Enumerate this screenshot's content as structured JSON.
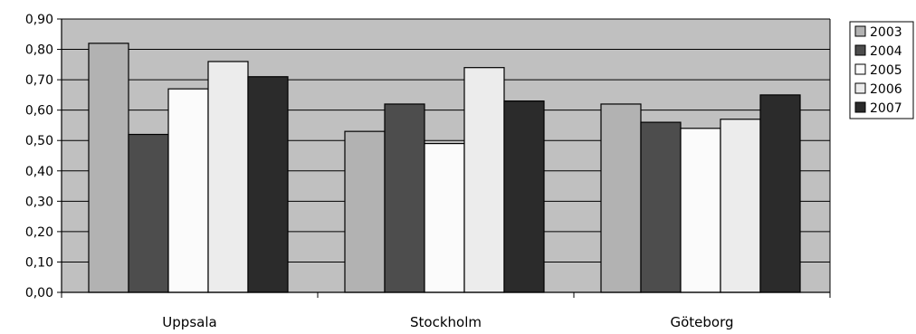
{
  "chart_data": {
    "type": "bar",
    "title": "",
    "xlabel": "",
    "ylabel": "",
    "categories": [
      "Uppsala",
      "Stockholm",
      "Göteborg"
    ],
    "ylim": [
      0,
      0.9
    ],
    "yticks": [
      "0,00",
      "0,10",
      "0,20",
      "0,30",
      "0,40",
      "0,50",
      "0,60",
      "0,70",
      "0,80",
      "0,90"
    ],
    "grid": true,
    "legend_position": "right",
    "plot_background": "#c0c0c0",
    "series": [
      {
        "name": "2003",
        "color": "#b2b2b2",
        "values": [
          0.82,
          0.53,
          0.62
        ]
      },
      {
        "name": "2004",
        "color": "#4d4d4d",
        "values": [
          0.52,
          0.62,
          0.56
        ]
      },
      {
        "name": "2005",
        "color": "#fbfbfb",
        "values": [
          0.67,
          0.49,
          0.54
        ]
      },
      {
        "name": "2006",
        "color": "#ececec",
        "values": [
          0.76,
          0.74,
          0.57
        ]
      },
      {
        "name": "2007",
        "color": "#2b2b2b",
        "values": [
          0.71,
          0.63,
          0.65
        ]
      }
    ]
  }
}
